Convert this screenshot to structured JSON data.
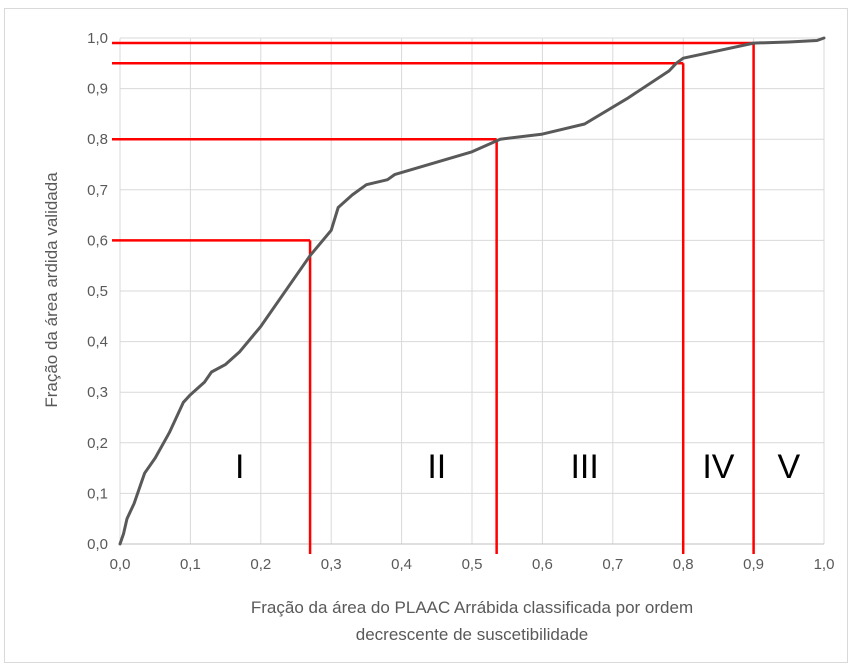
{
  "chart_data": {
    "type": "line",
    "xlabel_lines": [
      "Fração da área do PLAAC Arrábida classificada por ordem",
      "decrescente de suscetibilidade"
    ],
    "ylabel": "Fração da área ardida validada",
    "xlim": [
      0,
      1
    ],
    "ylim": [
      0,
      1
    ],
    "x_ticks": [
      "0,0",
      "0,1",
      "0,2",
      "0,3",
      "0,4",
      "0,5",
      "0,6",
      "0,7",
      "0,8",
      "0,9",
      "1,0"
    ],
    "y_ticks": [
      "0,0",
      "0,1",
      "0,2",
      "0,3",
      "0,4",
      "0,5",
      "0,6",
      "0,7",
      "0,8",
      "0,9",
      "1,0"
    ],
    "grid": true,
    "series": [
      {
        "color": "#595959",
        "points": [
          [
            0,
            0
          ],
          [
            0.005,
            0.02
          ],
          [
            0.01,
            0.05
          ],
          [
            0.02,
            0.08
          ],
          [
            0.03,
            0.12
          ],
          [
            0.035,
            0.14
          ],
          [
            0.05,
            0.17
          ],
          [
            0.07,
            0.22
          ],
          [
            0.09,
            0.28
          ],
          [
            0.1,
            0.295
          ],
          [
            0.12,
            0.32
          ],
          [
            0.13,
            0.34
          ],
          [
            0.15,
            0.355
          ],
          [
            0.17,
            0.38
          ],
          [
            0.2,
            0.43
          ],
          [
            0.25,
            0.53
          ],
          [
            0.27,
            0.57
          ],
          [
            0.3,
            0.62
          ],
          [
            0.31,
            0.665
          ],
          [
            0.33,
            0.69
          ],
          [
            0.35,
            0.71
          ],
          [
            0.38,
            0.72
          ],
          [
            0.39,
            0.73
          ],
          [
            0.5,
            0.775
          ],
          [
            0.54,
            0.8
          ],
          [
            0.6,
            0.81
          ],
          [
            0.66,
            0.83
          ],
          [
            0.72,
            0.88
          ],
          [
            0.78,
            0.935
          ],
          [
            0.79,
            0.95
          ],
          [
            0.8,
            0.96
          ],
          [
            0.85,
            0.975
          ],
          [
            0.9,
            0.99
          ],
          [
            0.95,
            0.992
          ],
          [
            0.99,
            0.995
          ],
          [
            1.0,
            1.0
          ]
        ]
      }
    ],
    "threshold_lines": [
      {
        "x": 0.27,
        "y": 0.6
      },
      {
        "x": 0.535,
        "y": 0.8
      },
      {
        "x": 0.8,
        "y": 0.95
      },
      {
        "x": 0.9,
        "y": 0.99
      }
    ],
    "threshold_color": "#ff0000",
    "class_labels": [
      {
        "text": "I",
        "x": 0.17,
        "y": 0.13
      },
      {
        "text": "II",
        "x": 0.45,
        "y": 0.13
      },
      {
        "text": "III",
        "x": 0.66,
        "y": 0.13
      },
      {
        "text": "IV",
        "x": 0.85,
        "y": 0.13
      },
      {
        "text": "V",
        "x": 0.95,
        "y": 0.13
      }
    ]
  }
}
